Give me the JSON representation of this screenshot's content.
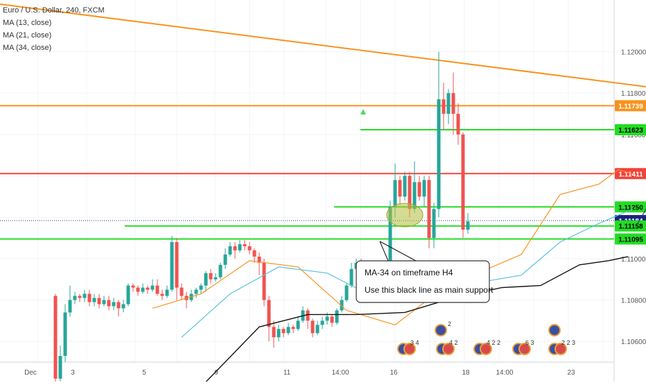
{
  "legend": {
    "symbol": "Euro / U.S. Dollar, 240, FXCM",
    "ma1": "MA (13, close)",
    "ma2": "MA (21, close)",
    "ma3": "MA (34, close)"
  },
  "annotation": {
    "line1": "MA-34 on timeframe H4",
    "line2": "Use this black line as main support"
  },
  "chart_data": {
    "type": "candlestick",
    "symbol": "Euro / U.S. Dollar",
    "timeframe": "240",
    "source": "FXCM",
    "ylim": [
      1.105,
      1.1225
    ],
    "y_ticks": [
      "1.12000",
      "1.11800",
      "1.11600",
      "1.11400",
      "1.11200",
      "1.11000",
      "1.10800",
      "1.10600"
    ],
    "x_ticks": [
      "Dec",
      "3",
      "5",
      "9",
      "11",
      "14:00",
      "16",
      "18",
      "14:00",
      "23"
    ],
    "price_levels": [
      {
        "label": "1.11739",
        "value": 1.11739,
        "color": "#f7931e"
      },
      {
        "label": "1.11623",
        "value": 1.11623,
        "color": "#22dd22"
      },
      {
        "label": "1.11411",
        "value": 1.11411,
        "color": "#f0433a"
      },
      {
        "label": "1.11250",
        "value": 1.1125,
        "color": "#22dd22"
      },
      {
        "label": "1.11184",
        "value": 1.11184,
        "color": "#1a237e"
      },
      {
        "label": "1.11158",
        "value": 1.11158,
        "color": "#22dd22"
      },
      {
        "label": "1.11095",
        "value": 1.11095,
        "color": "#22dd22"
      }
    ],
    "events": [
      {
        "label": "2",
        "flag": "eu"
      },
      {
        "label": "3  4",
        "flag": "eu-us"
      },
      {
        "label": "4  2",
        "flag": "us"
      },
      {
        "label": "4  2  2",
        "flag": "eu-us"
      },
      {
        "label": "6  3",
        "flag": "eu-us"
      },
      {
        "label": "",
        "flag": "eu"
      },
      {
        "label": "2  2  3",
        "flag": "eu-us"
      }
    ],
    "candles": [
      [
        1.1082,
        1.1042,
        1.1083,
        1.104
      ],
      [
        1.1042,
        1.1053,
        1.1058,
        1.104
      ],
      [
        1.1053,
        1.1074,
        1.1078,
        1.105
      ],
      [
        1.1074,
        1.108,
        1.1087,
        1.1072
      ],
      [
        1.108,
        1.1082,
        1.1084,
        1.1078
      ],
      [
        1.1082,
        1.1081,
        1.1083,
        1.1079
      ],
      [
        1.1081,
        1.1083,
        1.1085,
        1.1079
      ],
      [
        1.1083,
        1.1079,
        1.1085,
        1.1077
      ],
      [
        1.1079,
        1.1081,
        1.1083,
        1.1077
      ],
      [
        1.1081,
        1.1078,
        1.1083,
        1.1076
      ],
      [
        1.1078,
        1.108,
        1.1082,
        1.1077
      ],
      [
        1.108,
        1.1077,
        1.1082,
        1.1075
      ],
      [
        1.1077,
        1.1079,
        1.1081,
        1.1075
      ],
      [
        1.1079,
        1.1076,
        1.108,
        1.1072
      ],
      [
        1.1076,
        1.1078,
        1.108,
        1.1074
      ],
      [
        1.1078,
        1.1087,
        1.1088,
        1.1077
      ],
      [
        1.1087,
        1.1086,
        1.1088,
        1.1084
      ],
      [
        1.1086,
        1.1084,
        1.1087,
        1.1082
      ],
      [
        1.1084,
        1.1086,
        1.1088,
        1.1083
      ],
      [
        1.1086,
        1.1085,
        1.1087,
        1.1083
      ],
      [
        1.1085,
        1.1087,
        1.109,
        1.1084
      ],
      [
        1.1087,
        1.1083,
        1.109,
        1.1082
      ],
      [
        1.1083,
        1.1082,
        1.1085,
        1.108
      ],
      [
        1.1082,
        1.1085,
        1.1087,
        1.1081
      ],
      [
        1.1085,
        1.1108,
        1.1111,
        1.1084
      ],
      [
        1.1108,
        1.1086,
        1.111,
        1.108
      ],
      [
        1.1086,
        1.1082,
        1.1088,
        1.108
      ],
      [
        1.1082,
        1.108,
        1.1084,
        1.1076
      ],
      [
        1.108,
        1.1083,
        1.1085,
        1.1079
      ],
      [
        1.1083,
        1.1085,
        1.1086,
        1.1081
      ],
      [
        1.1085,
        1.1087,
        1.1088,
        1.1083
      ],
      [
        1.1087,
        1.1093,
        1.1094,
        1.1084
      ],
      [
        1.1093,
        1.109,
        1.1095,
        1.1088
      ],
      [
        1.109,
        1.1091,
        1.1093,
        1.1089
      ],
      [
        1.1091,
        1.1097,
        1.1098,
        1.109
      ],
      [
        1.1097,
        1.1102,
        1.1105,
        1.1095
      ],
      [
        1.1102,
        1.1106,
        1.1108,
        1.1101
      ],
      [
        1.1106,
        1.1104,
        1.1108,
        1.11
      ],
      [
        1.1104,
        1.1107,
        1.1109,
        1.1103
      ],
      [
        1.1107,
        1.1106,
        1.1109,
        1.1104
      ],
      [
        1.1106,
        1.1104,
        1.1108,
        1.1102
      ],
      [
        1.1104,
        1.1101,
        1.1105,
        1.1098
      ],
      [
        1.1101,
        1.1098,
        1.1103,
        1.1092
      ],
      [
        1.1098,
        1.108,
        1.11,
        1.1077
      ],
      [
        1.108,
        1.1067,
        1.1082,
        1.106
      ],
      [
        1.1067,
        1.1062,
        1.107,
        1.1057
      ],
      [
        1.1062,
        1.1066,
        1.1068,
        1.106
      ],
      [
        1.1066,
        1.1064,
        1.1067,
        1.1062
      ],
      [
        1.1064,
        1.1067,
        1.1069,
        1.1063
      ],
      [
        1.1067,
        1.1066,
        1.1068,
        1.1064
      ],
      [
        1.1066,
        1.107,
        1.1072,
        1.1065
      ],
      [
        1.107,
        1.1075,
        1.1077,
        1.1069
      ],
      [
        1.1075,
        1.107,
        1.1076,
        1.1066
      ],
      [
        1.107,
        1.1064,
        1.1071,
        1.1062
      ],
      [
        1.1064,
        1.1068,
        1.107,
        1.1063
      ],
      [
        1.1068,
        1.107,
        1.1072,
        1.1066
      ],
      [
        1.107,
        1.1072,
        1.1074,
        1.1068
      ],
      [
        1.1072,
        1.1069,
        1.1073,
        1.1067
      ],
      [
        1.1069,
        1.1075,
        1.1076,
        1.1068
      ],
      [
        1.1075,
        1.108,
        1.1082,
        1.1074
      ],
      [
        1.108,
        1.1087,
        1.1088,
        1.1079
      ],
      [
        1.1087,
        1.1095,
        1.1098,
        1.1086
      ],
      [
        1.1095,
        1.1098,
        1.11,
        1.1092
      ],
      [
        1.1098,
        1.1092,
        1.11,
        1.1088
      ],
      [
        1.1092,
        1.1095,
        1.1097,
        1.109
      ],
      [
        1.1095,
        1.1097,
        1.1099,
        1.1093
      ],
      [
        1.1097,
        1.109,
        1.1099,
        1.1085
      ],
      [
        1.109,
        1.1095,
        1.1097,
        1.1088
      ],
      [
        1.1095,
        1.1096,
        1.1098,
        1.1094
      ],
      [
        1.1096,
        1.1125,
        1.1128,
        1.1094
      ],
      [
        1.1125,
        1.1138,
        1.1146,
        1.112
      ],
      [
        1.1138,
        1.113,
        1.114,
        1.1126
      ],
      [
        1.113,
        1.114,
        1.1142,
        1.1128
      ],
      [
        1.114,
        1.1124,
        1.1142,
        1.112
      ],
      [
        1.1124,
        1.1137,
        1.1147,
        1.1122
      ],
      [
        1.1137,
        1.113,
        1.114,
        1.1128
      ],
      [
        1.113,
        1.1138,
        1.114,
        1.1125
      ],
      [
        1.1138,
        1.111,
        1.114,
        1.1105
      ],
      [
        1.111,
        1.1124,
        1.1127,
        1.1105
      ],
      [
        1.1124,
        1.1177,
        1.12,
        1.112
      ],
      [
        1.1177,
        1.117,
        1.1185,
        1.1162
      ],
      [
        1.117,
        1.118,
        1.1182,
        1.1165
      ],
      [
        1.118,
        1.117,
        1.119,
        1.116
      ],
      [
        1.117,
        1.116,
        1.1175,
        1.1155
      ],
      [
        1.116,
        1.1114,
        1.1161,
        1.111
      ],
      [
        1.1114,
        1.1118,
        1.1122,
        1.1112
      ]
    ],
    "ma_13": [
      [
        20,
        1.1076
      ],
      [
        30,
        1.1083
      ],
      [
        40,
        1.1099
      ],
      [
        50,
        1.1096
      ],
      [
        60,
        1.1075
      ],
      [
        70,
        1.1068
      ],
      [
        80,
        1.1086
      ],
      [
        88,
        1.1094
      ],
      [
        96,
        1.1102
      ],
      [
        104,
        1.1131
      ],
      [
        112,
        1.1136
      ],
      [
        116,
        1.1143
      ],
      [
        119,
        1.1141
      ]
    ],
    "ma_21": [
      [
        26,
        1.1062
      ],
      [
        36,
        1.1083
      ],
      [
        46,
        1.1096
      ],
      [
        56,
        1.1093
      ],
      [
        66,
        1.1081
      ],
      [
        76,
        1.108
      ],
      [
        86,
        1.1088
      ],
      [
        96,
        1.1092
      ],
      [
        104,
        1.1108
      ],
      [
        112,
        1.1117
      ],
      [
        119,
        1.1124
      ]
    ],
    "ma_34": [
      [
        30,
        1.1038
      ],
      [
        42,
        1.1067
      ],
      [
        52,
        1.1073
      ],
      [
        62,
        1.1073
      ],
      [
        72,
        1.1074
      ],
      [
        82,
        1.1081
      ],
      [
        92,
        1.1086
      ],
      [
        100,
        1.1087
      ],
      [
        108,
        1.1097
      ],
      [
        114,
        1.1099
      ],
      [
        118,
        1.1101
      ]
    ],
    "trendline": [
      [
        0,
        1.1223
      ],
      [
        132,
        1.118
      ]
    ],
    "projection": [
      [
        120,
        1.1117
      ],
      [
        122,
        1.1125
      ],
      [
        124,
        1.112
      ],
      [
        126,
        1.1115
      ],
      [
        128,
        1.113
      ],
      [
        130,
        1.1138
      ],
      [
        132,
        1.1128
      ],
      [
        134,
        1.1148
      ],
      [
        136,
        1.1162
      ]
    ]
  }
}
